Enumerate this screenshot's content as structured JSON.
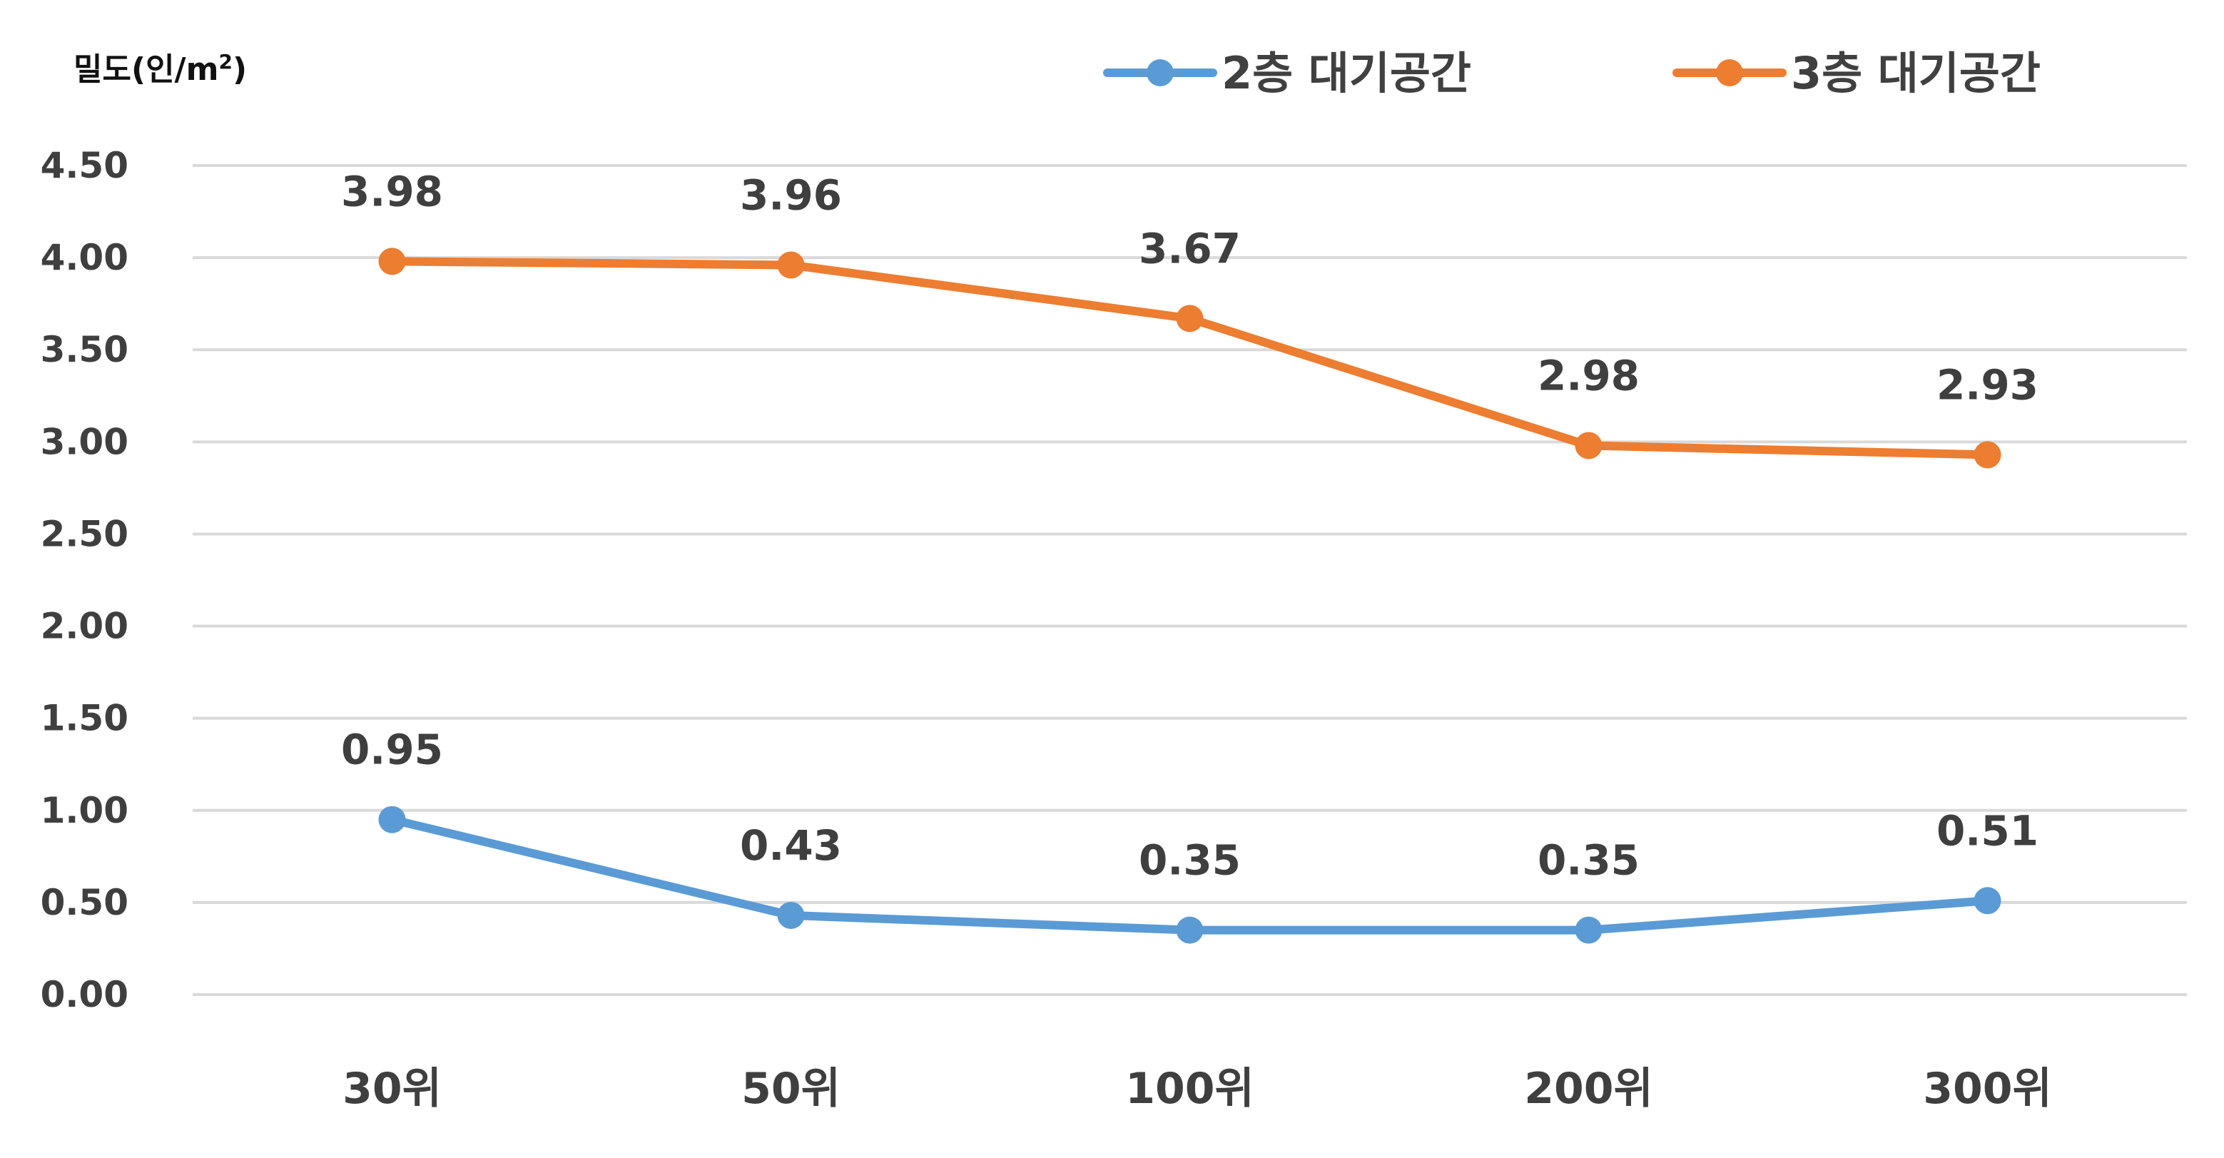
{
  "chart_data": {
    "type": "line",
    "ylabel_main": "밀도(인/m",
    "ylabel_sup": "2",
    "ylabel_close": ")",
    "categories": [
      "30위",
      "50위",
      "100위",
      "200위",
      "300위"
    ],
    "ylim": [
      0,
      4.5
    ],
    "ytick_values": [
      0,
      0.5,
      1,
      1.5,
      2,
      2.5,
      3,
      3.5,
      4,
      4.5
    ],
    "ytick_labels": [
      "0.00",
      "0.50",
      "1.00",
      "1.50",
      "2.00",
      "2.50",
      "3.00",
      "3.50",
      "4.00",
      "4.50"
    ],
    "grid": true,
    "legend_position": "top-right",
    "series": [
      {
        "name": "2층 대기공간",
        "color": "#5b9bd5",
        "values": [
          0.95,
          0.43,
          0.35,
          0.35,
          0.51
        ],
        "labels": [
          "0.95",
          "0.43",
          "0.35",
          "0.35",
          "0.51"
        ]
      },
      {
        "name": "3층 대기공간",
        "color": "#ed7d31",
        "values": [
          3.98,
          3.96,
          3.67,
          2.98,
          2.93
        ],
        "labels": [
          "3.98",
          "3.96",
          "3.67",
          "2.98",
          "2.93"
        ]
      }
    ]
  }
}
